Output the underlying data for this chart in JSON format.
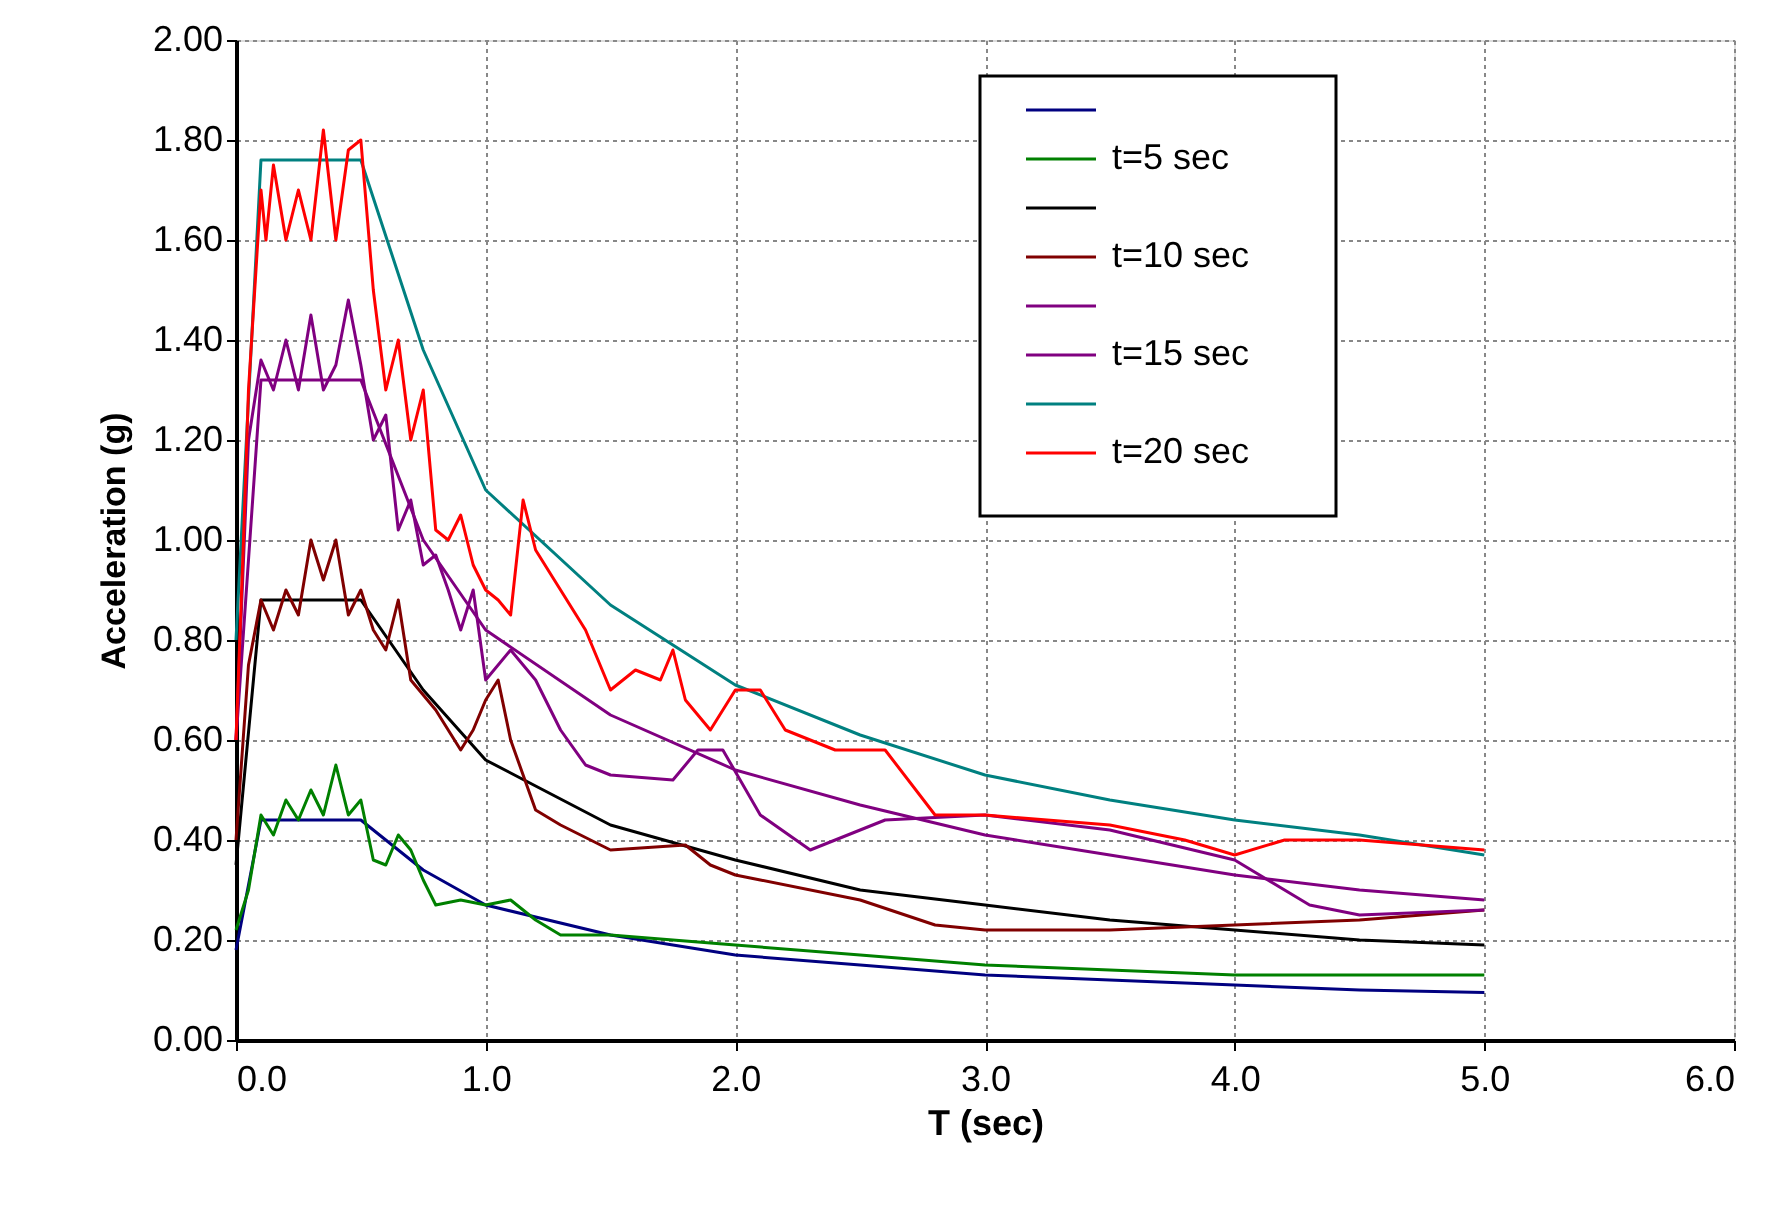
{
  "chart_data": {
    "type": "line",
    "xlabel": "T (sec)",
    "ylabel": "Acceleration (g)",
    "xlim": [
      0,
      6
    ],
    "xticks": [
      {
        "value": 0,
        "label": "0.0"
      },
      {
        "value": 1,
        "label": "1.0"
      },
      {
        "value": 2,
        "label": "2.0"
      },
      {
        "value": 3,
        "label": "3.0"
      },
      {
        "value": 4,
        "label": "4.0"
      },
      {
        "value": 5,
        "label": "5.0"
      },
      {
        "value": 6,
        "label": "6.0"
      }
    ],
    "ylim": [
      0,
      2
    ],
    "yticks": [
      {
        "value": 0,
        "label": "0.00"
      },
      {
        "value": 0.2,
        "label": "0.20"
      },
      {
        "value": 0.4,
        "label": "0.40"
      },
      {
        "value": 0.6,
        "label": "0.60"
      },
      {
        "value": 0.8,
        "label": "0.80"
      },
      {
        "value": 1,
        "label": "1.00"
      },
      {
        "value": 1.2,
        "label": "1.20"
      },
      {
        "value": 1.4,
        "label": "1.40"
      },
      {
        "value": 1.6,
        "label": "1.60"
      },
      {
        "value": 1.8,
        "label": "1.80"
      },
      {
        "value": 2,
        "label": "2.00"
      }
    ],
    "grid": true,
    "legend": "top right",
    "line_style": "solid",
    "marker": "none",
    "series": [
      {
        "color": "#000080",
        "x": [
          0,
          0.1,
          0.5,
          0.75,
          1,
          1.5,
          2,
          2.5,
          3,
          3.5,
          4,
          4.5,
          5
        ],
        "values": [
          0.18,
          0.44,
          0.44,
          0.34,
          0.27,
          0.21,
          0.17,
          0.15,
          0.13,
          0.12,
          0.11,
          0.1,
          0.095
        ]
      },
      {
        "name": "t=5 sec",
        "color": "#008000",
        "x": [
          0,
          0.05,
          0.1,
          0.15,
          0.2,
          0.25,
          0.3,
          0.35,
          0.4,
          0.45,
          0.5,
          0.55,
          0.6,
          0.65,
          0.7,
          0.75,
          0.8,
          0.9,
          1.0,
          1.1,
          1.2,
          1.3,
          1.5,
          2,
          2.5,
          3,
          3.5,
          4,
          4.5,
          5
        ],
        "values": [
          0.22,
          0.3,
          0.45,
          0.41,
          0.48,
          0.44,
          0.5,
          0.45,
          0.55,
          0.45,
          0.48,
          0.36,
          0.35,
          0.41,
          0.38,
          0.32,
          0.27,
          0.28,
          0.27,
          0.28,
          0.24,
          0.21,
          0.21,
          0.19,
          0.17,
          0.15,
          0.14,
          0.13,
          0.13,
          0.13
        ]
      },
      {
        "color": "#000000",
        "x": [
          0,
          0.1,
          0.5,
          0.75,
          1,
          1.5,
          2,
          2.5,
          3,
          3.5,
          4,
          4.5,
          5
        ],
        "values": [
          0.35,
          0.88,
          0.88,
          0.7,
          0.56,
          0.43,
          0.36,
          0.3,
          0.27,
          0.24,
          0.22,
          0.2,
          0.19
        ]
      },
      {
        "name": "t=10 sec",
        "color": "#800000",
        "x": [
          0,
          0.05,
          0.1,
          0.15,
          0.2,
          0.25,
          0.3,
          0.35,
          0.4,
          0.45,
          0.5,
          0.55,
          0.6,
          0.65,
          0.7,
          0.8,
          0.9,
          0.95,
          1.0,
          1.05,
          1.1,
          1.2,
          1.3,
          1.5,
          1.8,
          1.9,
          2.0,
          2.1,
          2.5,
          2.8,
          3.0,
          3.5,
          4.0,
          4.5,
          5.0
        ],
        "values": [
          0.4,
          0.75,
          0.88,
          0.82,
          0.9,
          0.85,
          1.0,
          0.92,
          1.0,
          0.85,
          0.9,
          0.82,
          0.78,
          0.88,
          0.72,
          0.66,
          0.58,
          0.62,
          0.68,
          0.72,
          0.6,
          0.46,
          0.43,
          0.38,
          0.39,
          0.35,
          0.33,
          0.32,
          0.28,
          0.23,
          0.22,
          0.22,
          0.23,
          0.24,
          0.26
        ]
      },
      {
        "color": "#800080",
        "x": [
          0,
          0.1,
          0.5,
          0.75,
          1,
          1.5,
          2,
          2.5,
          3,
          3.5,
          4,
          4.5,
          5
        ],
        "values": [
          0.6,
          1.32,
          1.32,
          1.0,
          0.82,
          0.65,
          0.54,
          0.47,
          0.41,
          0.37,
          0.33,
          0.3,
          0.28
        ]
      },
      {
        "name": "t=15 sec",
        "color": "#800080",
        "x": [
          0,
          0.05,
          0.1,
          0.15,
          0.2,
          0.25,
          0.3,
          0.35,
          0.4,
          0.45,
          0.5,
          0.55,
          0.6,
          0.65,
          0.7,
          0.75,
          0.8,
          0.85,
          0.9,
          0.95,
          1.0,
          1.1,
          1.2,
          1.3,
          1.4,
          1.5,
          1.75,
          1.85,
          1.95,
          2.1,
          2.3,
          2.6,
          3.0,
          3.5,
          4.0,
          4.3,
          4.5,
          5.0
        ],
        "values": [
          0.6,
          1.2,
          1.36,
          1.3,
          1.4,
          1.3,
          1.45,
          1.3,
          1.35,
          1.48,
          1.35,
          1.2,
          1.25,
          1.02,
          1.08,
          0.95,
          0.97,
          0.9,
          0.82,
          0.9,
          0.72,
          0.78,
          0.72,
          0.62,
          0.55,
          0.53,
          0.52,
          0.58,
          0.58,
          0.45,
          0.38,
          0.44,
          0.45,
          0.42,
          0.36,
          0.27,
          0.25,
          0.26
        ]
      },
      {
        "color": "#008080",
        "x": [
          0,
          0.1,
          0.5,
          0.75,
          1,
          1.5,
          2,
          2.5,
          3,
          3.5,
          4,
          4.5,
          5
        ],
        "values": [
          0.8,
          1.76,
          1.76,
          1.38,
          1.1,
          0.87,
          0.71,
          0.61,
          0.53,
          0.48,
          0.44,
          0.41,
          0.37
        ]
      },
      {
        "name": "t=20 sec",
        "color": "#ff0000",
        "x": [
          0,
          0.03,
          0.05,
          0.1,
          0.12,
          0.15,
          0.2,
          0.25,
          0.3,
          0.35,
          0.4,
          0.45,
          0.5,
          0.55,
          0.6,
          0.65,
          0.7,
          0.75,
          0.8,
          0.85,
          0.9,
          0.95,
          1.0,
          1.05,
          1.1,
          1.15,
          1.2,
          1.3,
          1.4,
          1.5,
          1.6,
          1.7,
          1.75,
          1.8,
          1.9,
          2.0,
          2.1,
          2.2,
          2.4,
          2.6,
          2.8,
          3.0,
          3.5,
          3.8,
          4.0,
          4.2,
          4.5,
          5.0
        ],
        "values": [
          0.6,
          1.0,
          1.3,
          1.7,
          1.6,
          1.75,
          1.6,
          1.7,
          1.6,
          1.82,
          1.6,
          1.78,
          1.8,
          1.5,
          1.3,
          1.4,
          1.2,
          1.3,
          1.02,
          1.0,
          1.05,
          0.95,
          0.9,
          0.88,
          0.85,
          1.08,
          0.98,
          0.9,
          0.82,
          0.7,
          0.74,
          0.72,
          0.78,
          0.68,
          0.62,
          0.7,
          0.7,
          0.62,
          0.58,
          0.58,
          0.45,
          0.45,
          0.43,
          0.4,
          0.37,
          0.4,
          0.4,
          0.38
        ]
      }
    ]
  }
}
